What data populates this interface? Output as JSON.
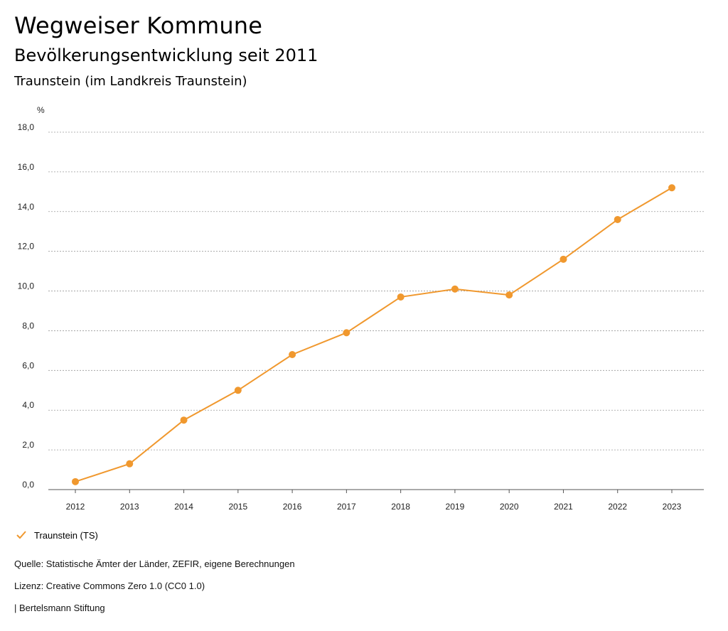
{
  "header": {
    "title": "Wegweiser Kommune",
    "subtitle": "Bevölkerungsentwicklung seit 2011",
    "region": "Traunstein (im Landkreis Traunstein)"
  },
  "colors": {
    "series": "#F0982E",
    "grid": "#9a9a9a",
    "axis": "#555555"
  },
  "chart_data": {
    "type": "line",
    "title": "Bevölkerungsentwicklung seit 2011",
    "ylabel": "%",
    "xlabel": "",
    "ylim": [
      0,
      18
    ],
    "yticks": [
      0,
      2,
      4,
      6,
      8,
      10,
      12,
      14,
      16,
      18
    ],
    "ytick_labels": [
      "0,0",
      "2,0",
      "4,0",
      "6,0",
      "8,0",
      "10,0",
      "12,0",
      "14,0",
      "16,0",
      "18,0"
    ],
    "categories": [
      "2012",
      "2013",
      "2014",
      "2015",
      "2016",
      "2017",
      "2018",
      "2019",
      "2020",
      "2021",
      "2022",
      "2023"
    ],
    "series": [
      {
        "name": "Traunstein (TS)",
        "values": [
          0.4,
          1.3,
          3.5,
          5.0,
          6.8,
          7.9,
          9.7,
          10.1,
          9.8,
          11.6,
          13.6,
          15.2
        ]
      }
    ],
    "grid": true,
    "legend": "bottom-left"
  },
  "legend": {
    "label": "Traunstein (TS)",
    "icon": "check-icon"
  },
  "footer": {
    "source": "Quelle: Statistische Ämter der Länder, ZEFIR, eigene Berechnungen",
    "license": "Lizenz: Creative Commons Zero 1.0 (CC0 1.0)",
    "publisher": "| Bertelsmann Stiftung"
  }
}
